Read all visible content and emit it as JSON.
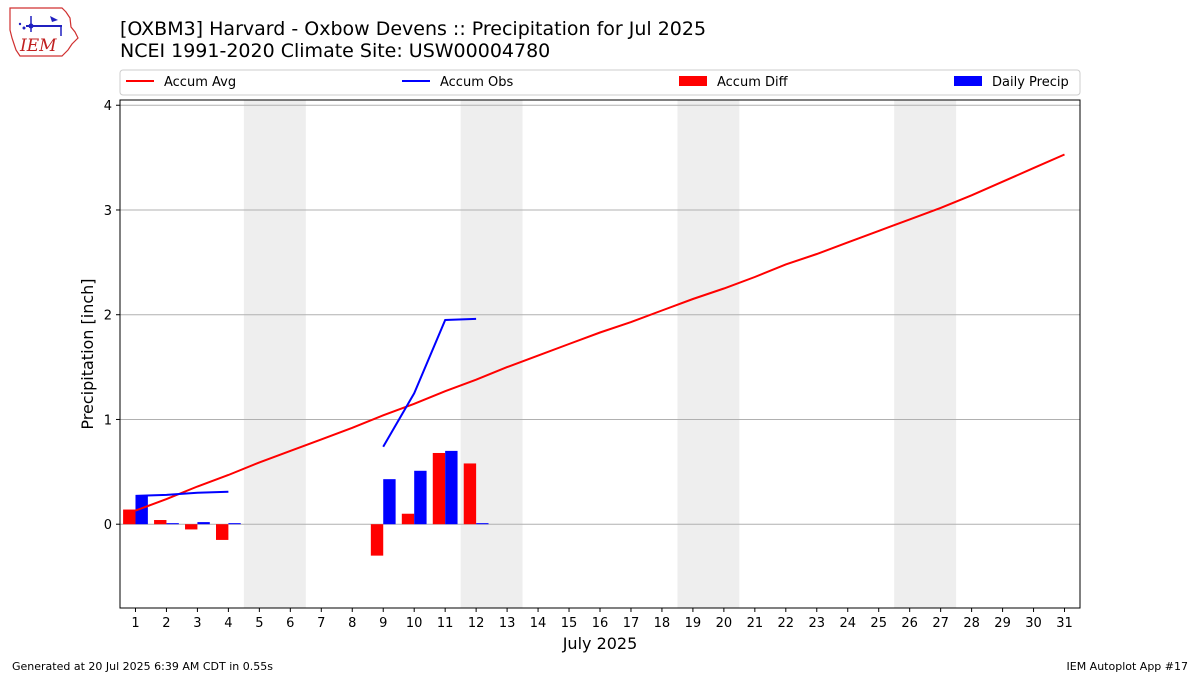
{
  "header": {
    "title_line1": "[OXBM3] Harvard - Oxbow Devens :: Precipitation for Jul 2025",
    "title_line2": "NCEI 1991-2020 Climate Site: USW00004780"
  },
  "logo": {
    "text": "IEM"
  },
  "footer": {
    "left": "Generated at 20 Jul 2025 6:39 AM CDT in 0.55s",
    "right": "IEM Autoplot App #17"
  },
  "colors": {
    "avg": "#ff0000",
    "obs": "#0000ff",
    "diff": "#ff0000",
    "daily": "#0000ff",
    "weekend_band": "#eeeeee",
    "grid": "#b0b0b0"
  },
  "chart_data": {
    "type": "bar",
    "xlabel": "July 2025",
    "ylabel": "Precipitation [inch]",
    "xlim": [
      0.5,
      31.5
    ],
    "ylim": [
      -0.8,
      4.05
    ],
    "x_ticks": [
      1,
      2,
      3,
      4,
      5,
      6,
      7,
      8,
      9,
      10,
      11,
      12,
      13,
      14,
      15,
      16,
      17,
      18,
      19,
      20,
      21,
      22,
      23,
      24,
      25,
      26,
      27,
      28,
      29,
      30,
      31
    ],
    "y_ticks": [
      0,
      1,
      2,
      3,
      4
    ],
    "grid": "y",
    "legend_position": "top",
    "weekend_bands": [
      [
        5,
        6
      ],
      [
        12,
        13
      ],
      [
        19,
        20
      ],
      [
        26,
        27
      ]
    ],
    "series": [
      {
        "name": "Accum Avg",
        "kind": "line",
        "x": [
          1,
          2,
          3,
          4,
          5,
          6,
          7,
          8,
          9,
          10,
          11,
          12,
          13,
          14,
          15,
          16,
          17,
          18,
          19,
          20,
          21,
          22,
          23,
          24,
          25,
          26,
          27,
          28,
          29,
          30,
          31
        ],
        "values": [
          0.13,
          0.24,
          0.36,
          0.47,
          0.59,
          0.7,
          0.81,
          0.92,
          1.04,
          1.15,
          1.27,
          1.38,
          1.5,
          1.61,
          1.72,
          1.83,
          1.93,
          2.04,
          2.15,
          2.25,
          2.36,
          2.48,
          2.58,
          2.69,
          2.8,
          2.91,
          3.02,
          3.14,
          3.27,
          3.4,
          3.53
        ]
      },
      {
        "name": "Accum Obs",
        "kind": "line",
        "x": [
          1,
          2,
          3,
          4,
          9,
          10,
          11,
          12
        ],
        "values": [
          0.27,
          0.28,
          0.3,
          0.31,
          0.74,
          1.25,
          1.95,
          1.96
        ]
      },
      {
        "name": "Accum Diff",
        "kind": "bar",
        "x": [
          1,
          2,
          3,
          4,
          9,
          10,
          11,
          12
        ],
        "values": [
          0.14,
          0.04,
          -0.05,
          -0.15,
          -0.3,
          0.1,
          0.68,
          0.58
        ]
      },
      {
        "name": "Daily Precip",
        "kind": "bar",
        "x": [
          1,
          2,
          3,
          4,
          9,
          10,
          11,
          12
        ],
        "values": [
          0.27,
          0.01,
          0.02,
          0.01,
          0.43,
          0.51,
          0.7,
          0.01
        ]
      }
    ]
  }
}
